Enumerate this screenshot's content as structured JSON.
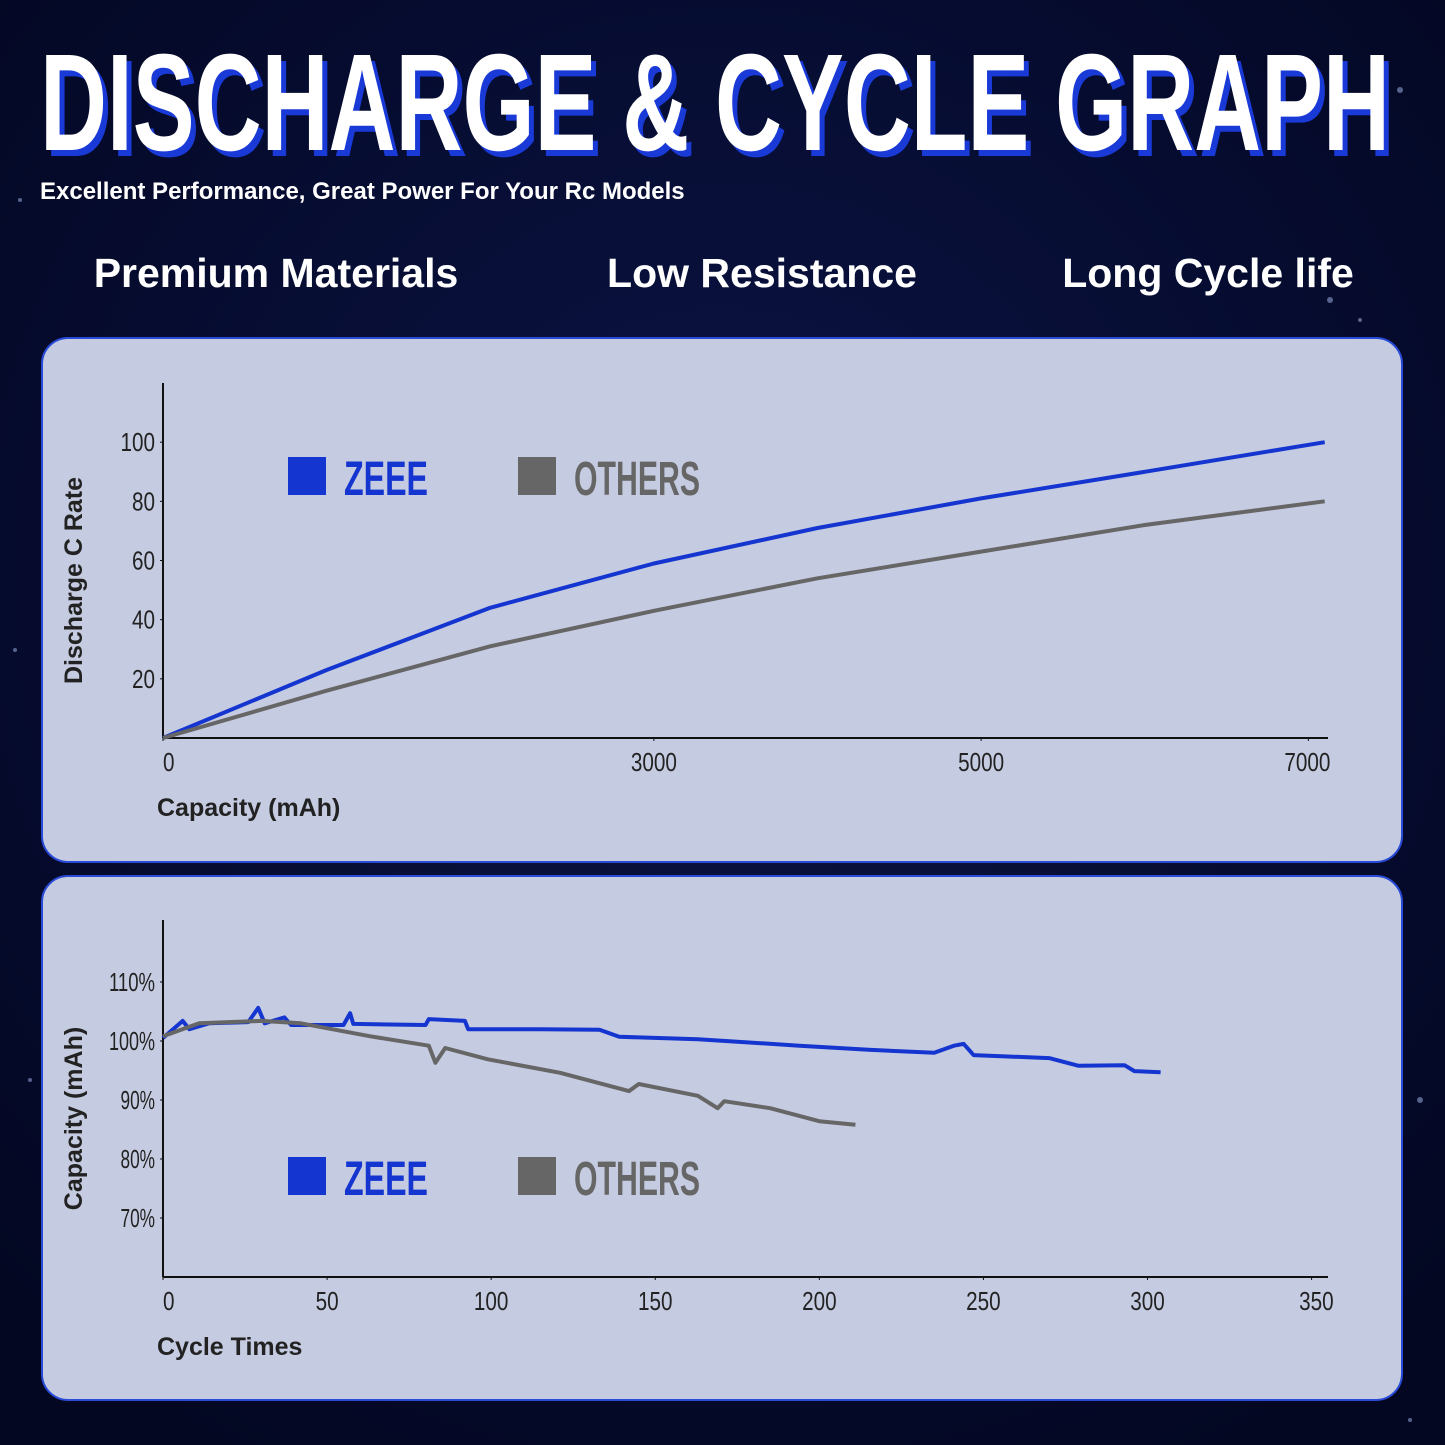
{
  "header": {
    "title": "DISCHARGE & CYCLE GRAPH",
    "subtitle": "Excellent Performance, Great Power For Your Rc Models",
    "features": [
      "Premium Materials",
      "Low Resistance",
      "Long Cycle life"
    ]
  },
  "chart_data": [
    {
      "type": "line",
      "x_label": "Capacity (mAh)",
      "y_label": "Discharge C Rate",
      "x": [
        0,
        1000,
        2000,
        3000,
        4000,
        5000,
        6000,
        7100
      ],
      "series": [
        {
          "name": "ZEEE",
          "color": "#1535d0",
          "values": [
            0,
            23,
            44,
            59,
            71,
            81,
            90,
            100
          ]
        },
        {
          "name": "OTHERS",
          "color": "#666666",
          "values": [
            0,
            16,
            31,
            43,
            54,
            63,
            72,
            80
          ]
        }
      ],
      "xlim": [
        0,
        7120
      ],
      "ylim": [
        0,
        120
      ],
      "xticks": [
        0,
        3000,
        5000,
        7000
      ],
      "yticks": [
        20,
        40,
        60,
        80,
        100
      ],
      "grid": false,
      "legend": "upper left"
    },
    {
      "type": "line",
      "x_label": "Cycle Times",
      "y_label": "Capacity (mAh)",
      "series": [
        {
          "name": "ZEEE",
          "color": "#1535d0",
          "x": [
            0,
            6,
            8,
            14,
            26,
            29,
            31,
            37,
            39,
            55,
            57,
            58,
            80,
            81,
            92,
            93,
            115,
            133,
            139,
            163,
            194,
            215,
            235,
            241,
            244,
            247,
            270,
            279,
            293,
            296,
            304
          ],
          "values": [
            100.5,
            103.4,
            102,
            103,
            103.2,
            105.6,
            103,
            104,
            102.7,
            102.7,
            104.7,
            102.9,
            102.7,
            103.7,
            103.4,
            102,
            102,
            101.9,
            100.7,
            100.3,
            99.2,
            98.5,
            98,
            99.2,
            99.5,
            97.6,
            97.1,
            95.8,
            95.9,
            94.9,
            94.7
          ]
        },
        {
          "name": "OTHERS",
          "color": "#666666",
          "x": [
            0,
            11,
            30,
            42,
            63,
            81,
            83,
            86,
            99,
            121,
            142,
            145,
            163,
            169,
            171,
            185,
            200,
            211
          ],
          "values": [
            100.8,
            103,
            103.4,
            103,
            100.8,
            99.2,
            96.3,
            98.8,
            96.9,
            94.6,
            91.5,
            92.7,
            90.7,
            88.6,
            89.8,
            88.6,
            86.4,
            85.8
          ]
        }
      ],
      "xlim": [
        0,
        355
      ],
      "ylim": [
        60,
        120.5
      ],
      "xticks": [
        0,
        50,
        100,
        150,
        200,
        250,
        300,
        350
      ],
      "yticks": [
        {
          "value": 70,
          "label": "70%"
        },
        {
          "value": 80,
          "label": "80%"
        },
        {
          "value": 90,
          "label": "90%"
        },
        {
          "value": 100,
          "label": "100%"
        },
        {
          "value": 110,
          "label": "110%"
        }
      ],
      "grid": false,
      "legend": "lower left"
    }
  ]
}
